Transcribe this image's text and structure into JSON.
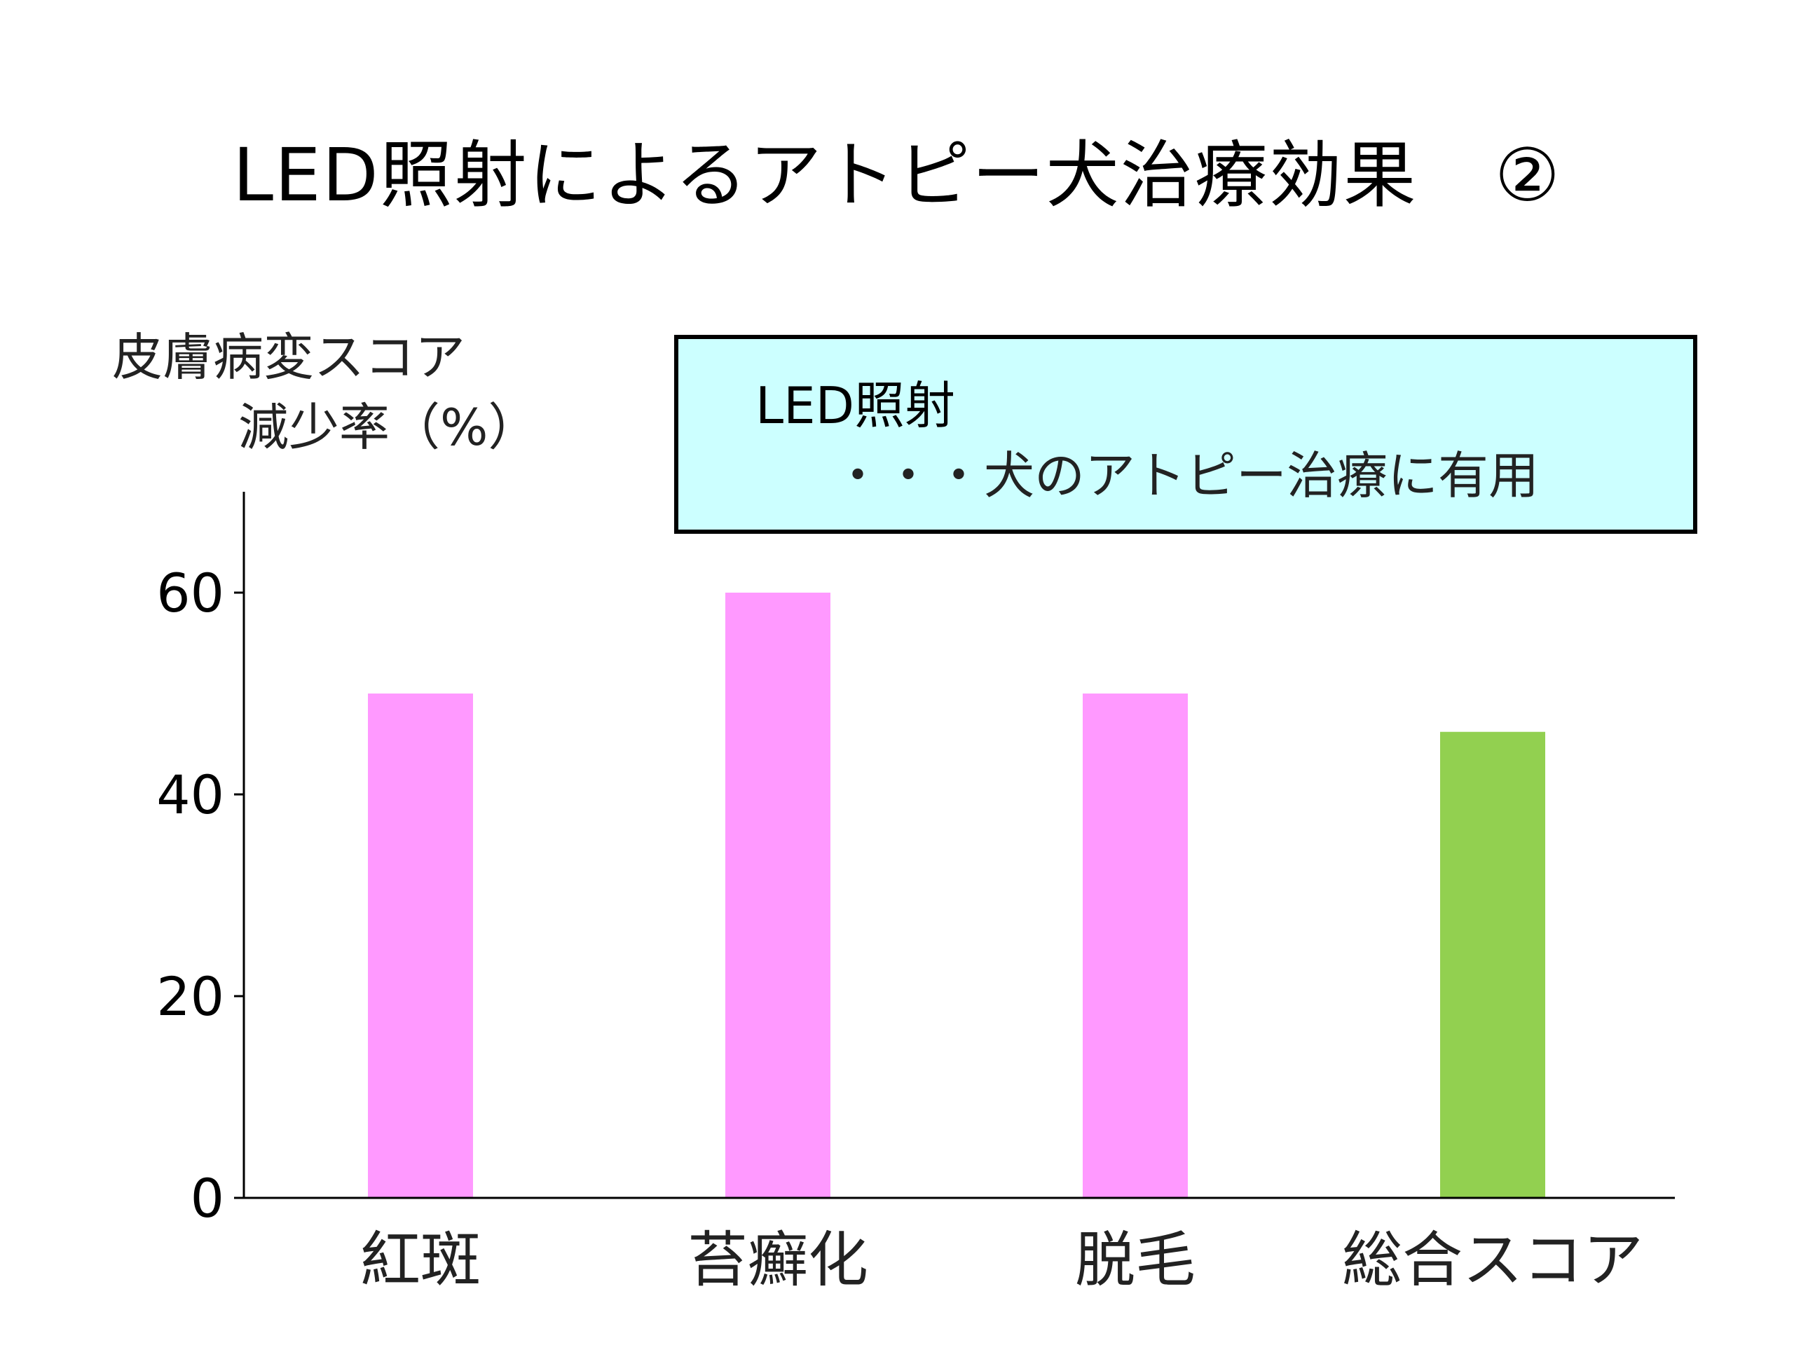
{
  "title": {
    "main": "LED照射によるアトピー犬治療効果",
    "circle": "②"
  },
  "y_axis_title": {
    "line1": "皮膚病変スコア",
    "line2": "減少率（%）"
  },
  "note": {
    "line1": "LED照射",
    "line2": "・・・犬のアトピー治療に有用"
  },
  "chart_data": {
    "type": "bar",
    "categories": [
      "紅斑",
      "苔癬化",
      "脱毛",
      "総合スコア"
    ],
    "values": [
      50,
      60,
      50,
      46.2
    ],
    "bar_colors": [
      "#ff99ff",
      "#ff99ff",
      "#ff99ff",
      "#92d050"
    ],
    "ylabel": "皮膚病変スコア 減少率（%）",
    "ylim": [
      0,
      70
    ],
    "yticks": [
      0,
      20,
      40,
      60
    ],
    "grid": false,
    "legend": "none"
  }
}
